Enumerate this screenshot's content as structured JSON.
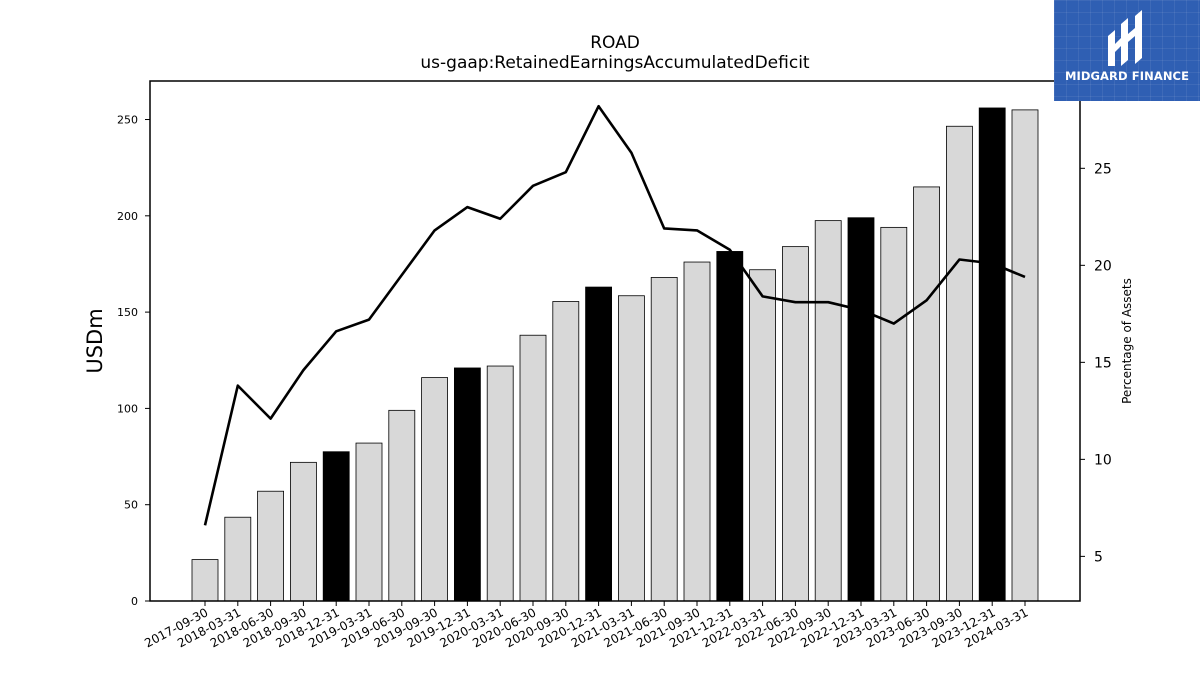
{
  "chart_data": {
    "type": "bar",
    "title": "ROAD",
    "subtitle": "us-gaap:RetainedEarningsAccumulatedDeficit",
    "ylabel": "USDm",
    "ylabel_right": "Percentage of Assets",
    "categories": [
      "2017-09-30",
      "2018-03-31",
      "2018-06-30",
      "2018-09-30",
      "2018-12-31",
      "2019-03-31",
      "2019-06-30",
      "2019-09-30",
      "2019-12-31",
      "2020-03-31",
      "2020-06-30",
      "2020-09-30",
      "2020-12-31",
      "2021-03-31",
      "2021-06-30",
      "2021-09-30",
      "2021-12-31",
      "2022-03-31",
      "2022-06-30",
      "2022-09-30",
      "2022-12-31",
      "2023-03-31",
      "2023-06-30",
      "2023-09-30",
      "2023-12-31",
      "2024-03-31"
    ],
    "series": [
      {
        "type": "bar",
        "axis": "left",
        "values": [
          21.5,
          43.5,
          57,
          72,
          77.5,
          82,
          99,
          116,
          121,
          122,
          138,
          155.5,
          163,
          158.5,
          168,
          176,
          181.5,
          172,
          184,
          197.5,
          199,
          194,
          215,
          246.5,
          256,
          255
        ],
        "highlight": [
          false,
          false,
          false,
          false,
          true,
          false,
          false,
          false,
          true,
          false,
          false,
          false,
          true,
          false,
          false,
          false,
          true,
          false,
          false,
          false,
          true,
          false,
          false,
          false,
          true,
          false
        ]
      },
      {
        "type": "line",
        "axis": "right",
        "values": [
          6.6,
          13.8,
          12.1,
          14.6,
          16.6,
          17.2,
          19.5,
          21.8,
          23.0,
          22.4,
          24.1,
          24.8,
          28.2,
          25.8,
          21.9,
          21.8,
          20.8,
          18.4,
          18.1,
          18.1,
          17.7,
          17.0,
          18.2,
          20.3,
          20.1,
          19.4
        ]
      }
    ],
    "ylim": [
      0,
      270
    ],
    "yticks": [
      0,
      50,
      100,
      150,
      200,
      250
    ],
    "ylim_right": [
      2.7,
      29.5
    ],
    "yticks_right": [
      5,
      10,
      15,
      20,
      25
    ],
    "grid": false,
    "colors": {
      "bar": "#d8d8d8",
      "bar_highlight": "#000000",
      "bar_edge": "#000000",
      "line": "#000000"
    }
  },
  "logo": {
    "text": "MIDGARD FINANCE",
    "background": "#2f5fb3"
  }
}
